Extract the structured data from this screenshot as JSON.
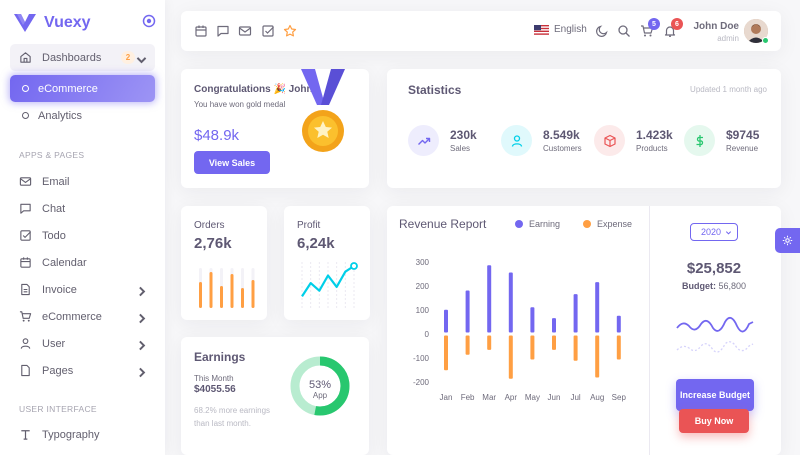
{
  "brand": {
    "name": "Vuexy"
  },
  "sidebar": {
    "dashboards": {
      "label": "Dashboards",
      "badge": "2"
    },
    "ecommerce_active": "eCommerce",
    "analytics": "Analytics",
    "section_apps": "APPS & PAGES",
    "apps": [
      {
        "label": "Email",
        "icon": "mail-icon"
      },
      {
        "label": "Chat",
        "icon": "message-square-icon"
      },
      {
        "label": "Todo",
        "icon": "check-square-icon"
      },
      {
        "label": "Calendar",
        "icon": "calendar-icon"
      },
      {
        "label": "Invoice",
        "icon": "file-text-icon"
      },
      {
        "label": "eCommerce",
        "icon": "shopping-cart-icon"
      },
      {
        "label": "User",
        "icon": "user-icon"
      },
      {
        "label": "Pages",
        "icon": "file-icon"
      }
    ],
    "section_ui": "USER INTERFACE",
    "typography": "Typography"
  },
  "navbar": {
    "language": "English",
    "cart_count": "5",
    "notif_count": "6",
    "user_name": "John Doe",
    "user_role": "admin"
  },
  "congrats": {
    "title": "Congratulations 🎉 John",
    "subtitle": "You have won gold medal",
    "amount": "$48.9k",
    "button": "View Sales"
  },
  "statistics": {
    "title": "Statistics",
    "updated": "Updated 1 month ago",
    "items": [
      {
        "value": "230k",
        "label": "Sales",
        "icon": "trending-up-icon",
        "color": "#7367f0",
        "bg": "#eeedfd"
      },
      {
        "value": "8.549k",
        "label": "Customers",
        "icon": "user-icon",
        "color": "#00cfe8",
        "bg": "#e0f9fc"
      },
      {
        "value": "1.423k",
        "label": "Products",
        "icon": "box-icon",
        "color": "#ea5455",
        "bg": "#fceaea"
      },
      {
        "value": "$9745",
        "label": "Revenue",
        "icon": "dollar-sign-icon",
        "color": "#28c76f",
        "bg": "#e5f8ee"
      }
    ]
  },
  "orders": {
    "title": "Orders",
    "value": "2,76k",
    "bars": [
      0.65,
      0.9,
      0.55,
      0.85,
      0.5,
      0.7
    ]
  },
  "profit": {
    "title": "Profit",
    "value": "6,24k",
    "points": [
      0.2,
      0.55,
      0.35,
      0.75,
      0.45,
      0.85,
      1.0
    ]
  },
  "earnings": {
    "title": "Earnings",
    "this_month": "This Month",
    "amount": "$4055.56",
    "note_pct": "68.2%",
    "note_rest": " more earnings than last month.",
    "donut_pct": "53%",
    "donut_label": "App",
    "donut_value": 0.53
  },
  "revenue": {
    "title": "Revenue Report",
    "legend_earning": "Earning",
    "legend_expense": "Expense",
    "year": "2020",
    "budget_amount": "$25,852",
    "budget_label": "Budget:",
    "budget_value": "56,800",
    "increase_button": "Increase Budget",
    "buy_button": "Buy Now"
  },
  "chart_data": {
    "type": "bar",
    "categories": [
      "Jan",
      "Feb",
      "Mar",
      "Apr",
      "May",
      "Jun",
      "Jul",
      "Aug",
      "Sep"
    ],
    "series": [
      {
        "name": "Earning",
        "values": [
          95,
          175,
          280,
          250,
          105,
          60,
          160,
          210,
          70
        ],
        "color": "#7367f0"
      },
      {
        "name": "Expense",
        "values": [
          -145,
          -80,
          -60,
          -180,
          -100,
          -60,
          -105,
          -175,
          -100
        ],
        "color": "#ff9f43"
      }
    ],
    "yticks": [
      300,
      200,
      100,
      0,
      -100,
      -200
    ],
    "ylim": [
      -200,
      300
    ]
  }
}
